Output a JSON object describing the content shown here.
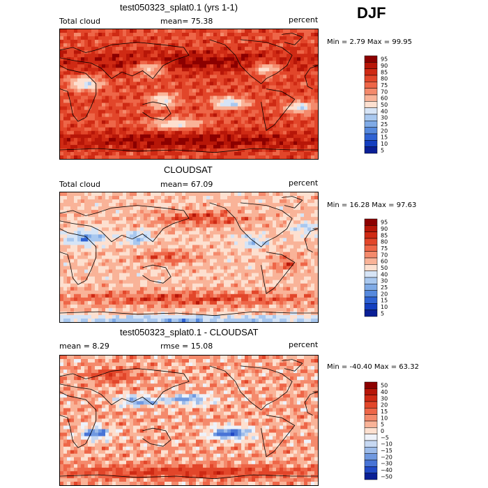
{
  "season": "DJF",
  "panels": [
    {
      "id": "model",
      "title": "test050323_splat0.1 (yrs 1-1)",
      "left_label": "Total cloud",
      "mean_label": "mean=  75.38",
      "units": "percent",
      "minmax": "Min =   2.79 Max =  99.95",
      "colorbar": {
        "levels": [
          "95",
          "90",
          "85",
          "80",
          "75",
          "70",
          "60",
          "50",
          "40",
          "30",
          "25",
          "20",
          "15",
          "10",
          "5"
        ],
        "colors": [
          "#8c0000",
          "#b71608",
          "#cf2a14",
          "#e2462a",
          "#ee6648",
          "#f48a6c",
          "#f9b398",
          "#fde0d0",
          "#d6e4f6",
          "#a9c8ef",
          "#7faae6",
          "#5689dd",
          "#2f62d3",
          "#143fc0",
          "#0a1f96"
        ]
      },
      "field": "model"
    },
    {
      "id": "obs",
      "title": "CLOUDSAT",
      "left_label": "Total cloud",
      "mean_label": "mean=  67.09",
      "units": "percent",
      "minmax": "Min =  16.28 Max =  97.63",
      "colorbar": {
        "levels": [
          "95",
          "90",
          "85",
          "80",
          "75",
          "70",
          "60",
          "50",
          "40",
          "30",
          "25",
          "20",
          "15",
          "10",
          "5"
        ],
        "colors": [
          "#8c0000",
          "#b71608",
          "#cf2a14",
          "#e2462a",
          "#ee6648",
          "#f48a6c",
          "#f9b398",
          "#fde0d0",
          "#d6e4f6",
          "#a9c8ef",
          "#7faae6",
          "#5689dd",
          "#2f62d3",
          "#143fc0",
          "#0a1f96"
        ]
      },
      "field": "obs"
    },
    {
      "id": "diff",
      "title": "test050323_splat0.1 - CLOUDSAT",
      "left_label": "mean =    8.29",
      "mean_label": "rmse =  15.08",
      "units": "percent",
      "minmax": "Min = -40.40 Max =  63.32",
      "colorbar": {
        "levels": [
          "50",
          "40",
          "30",
          "20",
          "15",
          "10",
          "5",
          "0",
          "−5",
          "−10",
          "−15",
          "−20",
          "−30",
          "−40",
          "−50"
        ],
        "colors": [
          "#8c0000",
          "#b71608",
          "#cf2a14",
          "#e2462a",
          "#ee6648",
          "#f48a6c",
          "#f9b398",
          "#fde0d0",
          "#eef2fa",
          "#c6d8f2",
          "#9dbcea",
          "#7099e0",
          "#4874d6",
          "#2149c6",
          "#0a1f96"
        ]
      },
      "field": "diff"
    }
  ]
}
